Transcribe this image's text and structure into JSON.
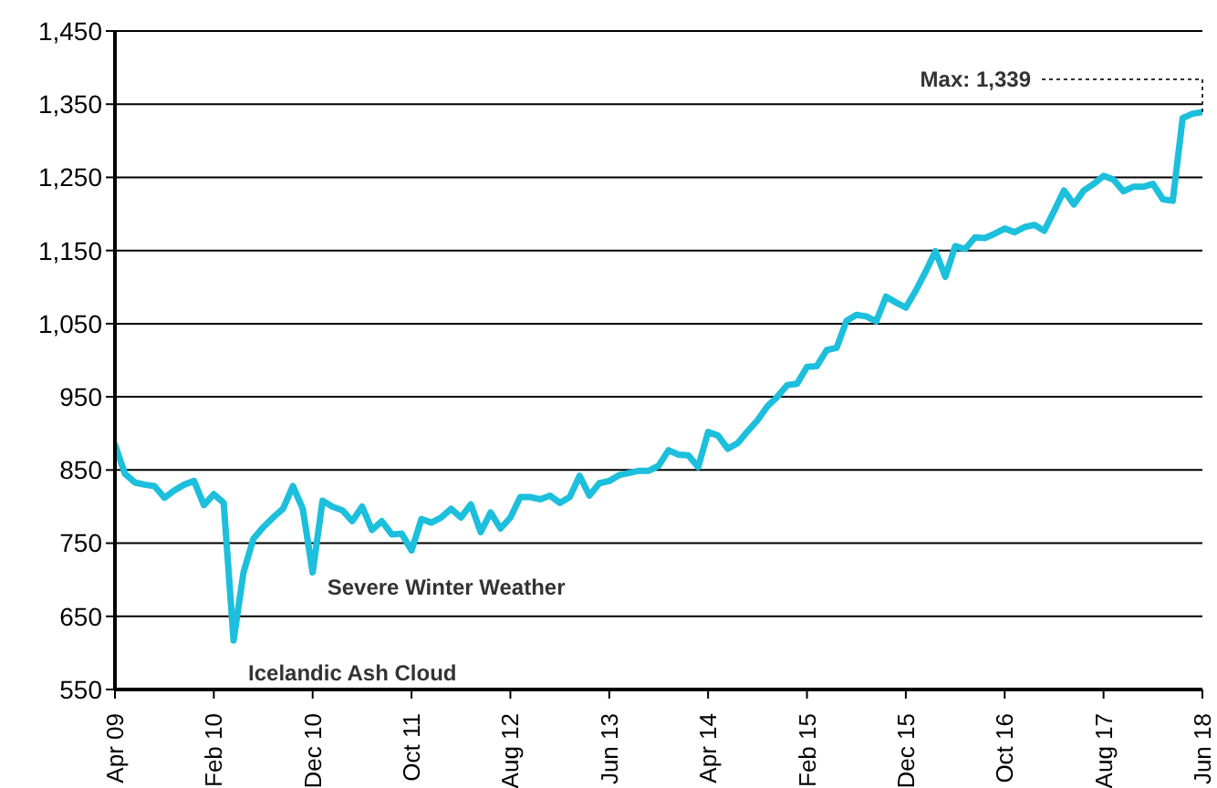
{
  "chart_data": {
    "type": "line",
    "x": [
      "2009-04",
      "2009-05",
      "2009-06",
      "2009-07",
      "2009-08",
      "2009-09",
      "2009-10",
      "2009-11",
      "2009-12",
      "2010-01",
      "2010-02",
      "2010-03",
      "2010-04",
      "2010-05",
      "2010-06",
      "2010-07",
      "2010-08",
      "2010-09",
      "2010-10",
      "2010-11",
      "2010-12",
      "2011-01",
      "2011-02",
      "2011-03",
      "2011-04",
      "2011-05",
      "2011-06",
      "2011-07",
      "2011-08",
      "2011-09",
      "2011-10",
      "2011-11",
      "2011-12",
      "2012-01",
      "2012-02",
      "2012-03",
      "2012-04",
      "2012-05",
      "2012-06",
      "2012-07",
      "2012-08",
      "2012-09",
      "2012-10",
      "2012-11",
      "2012-12",
      "2013-01",
      "2013-02",
      "2013-03",
      "2013-04",
      "2013-05",
      "2013-06",
      "2013-07",
      "2013-08",
      "2013-09",
      "2013-10",
      "2013-11",
      "2013-12",
      "2014-01",
      "2014-02",
      "2014-03",
      "2014-04",
      "2014-05",
      "2014-06",
      "2014-07",
      "2014-08",
      "2014-09",
      "2014-10",
      "2014-11",
      "2014-12",
      "2015-01",
      "2015-02",
      "2015-03",
      "2015-04",
      "2015-05",
      "2015-06",
      "2015-07",
      "2015-08",
      "2015-09",
      "2015-10",
      "2015-11",
      "2015-12",
      "2016-01",
      "2016-02",
      "2016-03",
      "2016-04",
      "2016-05",
      "2016-06",
      "2016-07",
      "2016-08",
      "2016-09",
      "2016-10",
      "2016-11",
      "2016-12",
      "2017-01",
      "2017-02",
      "2017-03",
      "2017-04",
      "2017-05",
      "2017-06",
      "2017-07",
      "2017-08",
      "2017-09",
      "2017-10",
      "2017-11",
      "2017-12",
      "2018-01",
      "2018-02",
      "2018-03",
      "2018-04",
      "2018-05",
      "2018-06"
    ],
    "series": [
      {
        "color": "#1cbfdc",
        "values": [
          885,
          845,
          833,
          830,
          828,
          812,
          822,
          830,
          835,
          802,
          817,
          805,
          617,
          710,
          756,
          772,
          785,
          797,
          828,
          797,
          710,
          808,
          800,
          795,
          780,
          800,
          768,
          780,
          762,
          763,
          740,
          783,
          778,
          785,
          797,
          785,
          803,
          765,
          792,
          770,
          785,
          813,
          813,
          810,
          815,
          805,
          813,
          842,
          815,
          832,
          835,
          843,
          846,
          849,
          849,
          856,
          877,
          871,
          870,
          854,
          902,
          897,
          879,
          887,
          903,
          918,
          937,
          950,
          966,
          968,
          991,
          992,
          1014,
          1017,
          1054,
          1062,
          1060,
          1053,
          1087,
          1079,
          1072,
          1095,
          1121,
          1149,
          1114,
          1156,
          1152,
          1168,
          1167,
          1173,
          1180,
          1175,
          1182,
          1185,
          1177,
          1204,
          1232,
          1213,
          1232,
          1241,
          1252,
          1247,
          1231,
          1237,
          1237,
          1241,
          1220,
          1218,
          1331,
          1337,
          1339
        ]
      }
    ],
    "xlim": [
      "2009-04",
      "2018-06"
    ],
    "xticks": [
      {
        "value": "2009-04",
        "label": "Apr 09"
      },
      {
        "value": "2010-02",
        "label": "Feb 10"
      },
      {
        "value": "2010-12",
        "label": "Dec 10"
      },
      {
        "value": "2011-10",
        "label": "Oct 11"
      },
      {
        "value": "2012-08",
        "label": "Aug 12"
      },
      {
        "value": "2013-06",
        "label": "Jun 13"
      },
      {
        "value": "2014-04",
        "label": "Apr 14"
      },
      {
        "value": "2015-02",
        "label": "Feb 15"
      },
      {
        "value": "2015-12",
        "label": "Dec 15"
      },
      {
        "value": "2016-10",
        "label": "Oct 16"
      },
      {
        "value": "2017-08",
        "label": "Aug 17"
      },
      {
        "value": "2018-06",
        "label": "Jun 18"
      }
    ],
    "ylim": [
      550,
      1450
    ],
    "yticks": [
      550,
      650,
      750,
      850,
      950,
      {
        "value": 1050,
        "label": "1,050"
      },
      {
        "value": 1150,
        "label": "1,150"
      },
      {
        "value": 1250,
        "label": "1,250"
      },
      {
        "value": 1350,
        "label": "1,350"
      },
      {
        "value": 1450,
        "label": "1,450"
      }
    ],
    "grid": "y",
    "marker": "none",
    "line_style": "solid",
    "legend": false,
    "annotations": [
      {
        "text": "Icelandic Ash Cloud",
        "x": "2010-04",
        "y": 617
      },
      {
        "text": "Severe Winter Weather",
        "x": "2010-12",
        "y": 710
      },
      {
        "text": "Max:  1,339",
        "x": "2018-06",
        "y": 1339
      }
    ]
  }
}
